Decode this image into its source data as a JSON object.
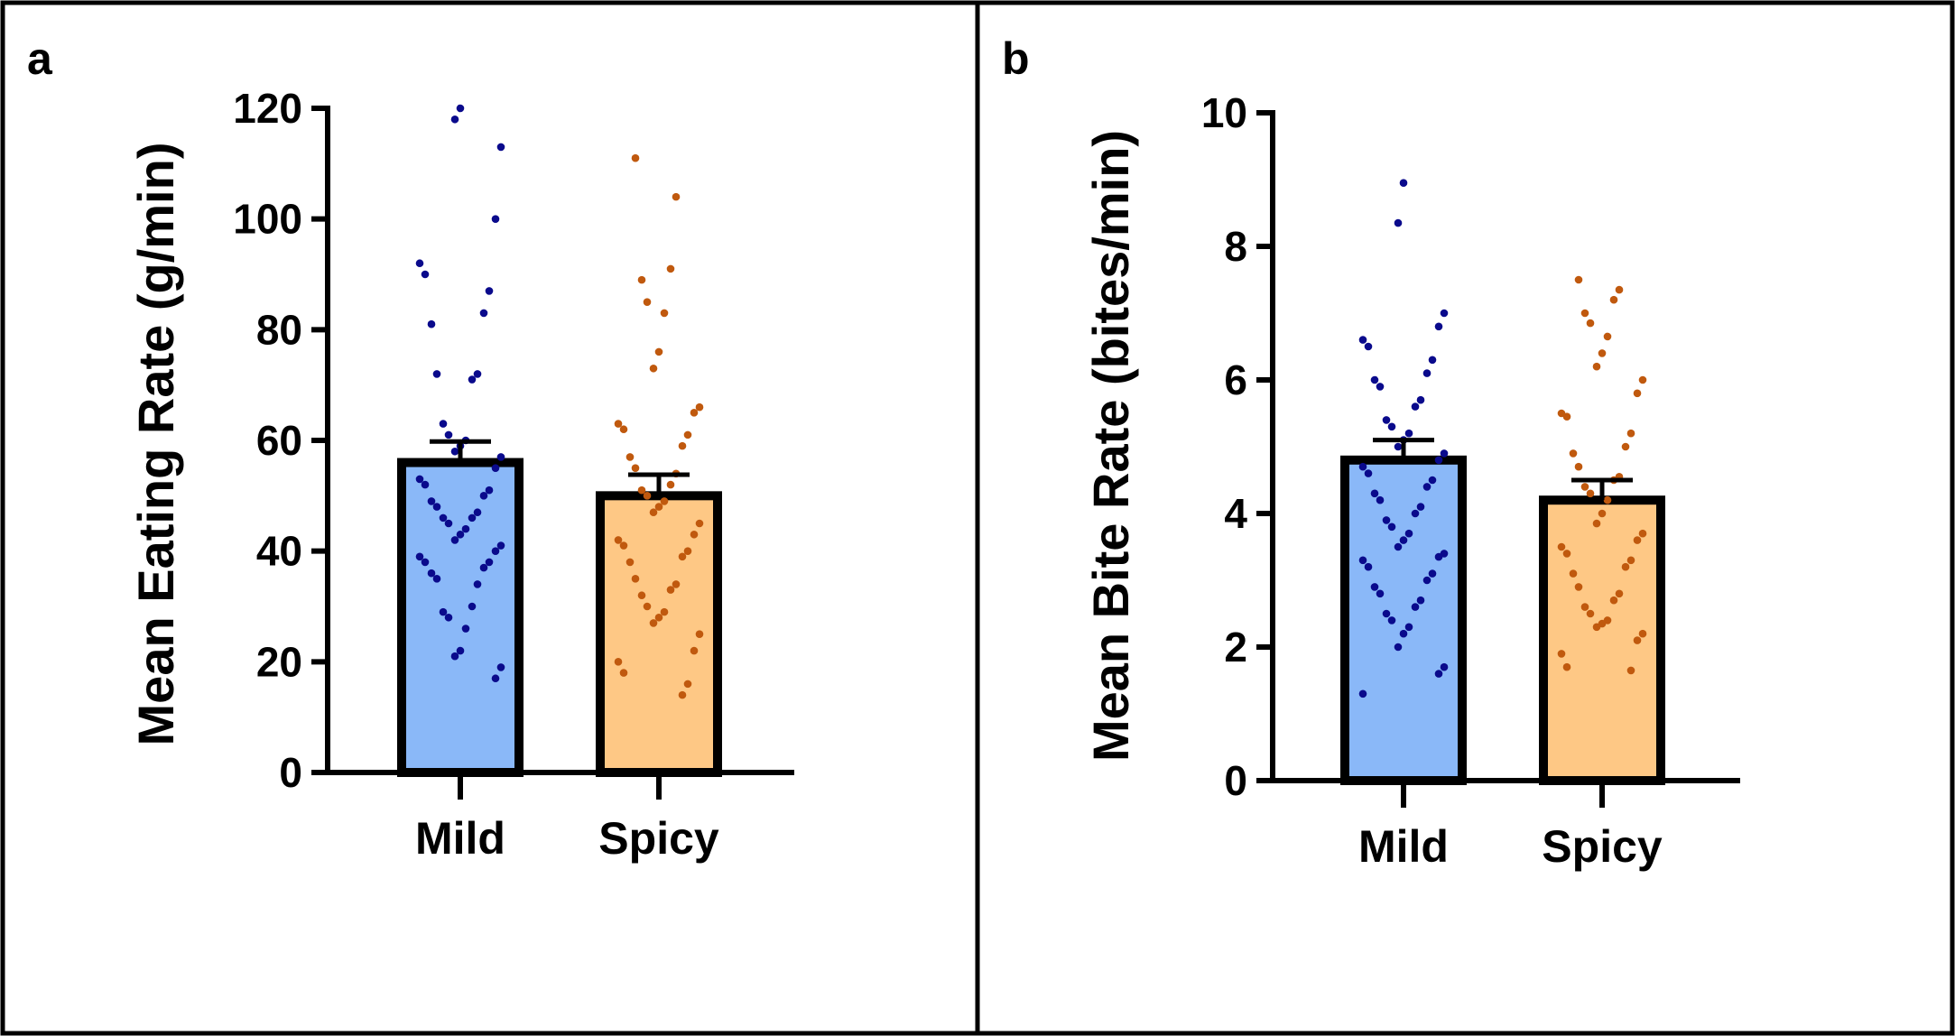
{
  "chart_data": [
    {
      "panel_label": "a",
      "type": "bar",
      "ylabel": "Mean Eating Rate (g/min)",
      "xlabel": "",
      "ylim": [
        0,
        120
      ],
      "yticks": [
        "0",
        "20",
        "40",
        "60",
        "80",
        "100",
        "120"
      ],
      "categories": [
        "Mild",
        "Spicy"
      ],
      "values": [
        56,
        50
      ],
      "error": [
        3.8,
        3.8
      ],
      "fill_colors": [
        "#8AB8F8",
        "#FEC885"
      ],
      "point_colors": [
        "#0A0A8C",
        "#C0590E"
      ],
      "points": [
        [
          120,
          118,
          113,
          100,
          92,
          90,
          87,
          83,
          81,
          72,
          72,
          71,
          63,
          61,
          60,
          59,
          58,
          57,
          55,
          53,
          52,
          51,
          50,
          49,
          48,
          47,
          46,
          46,
          45,
          44,
          43,
          42,
          41,
          40,
          39,
          38,
          38,
          37,
          36,
          35,
          34,
          30,
          29,
          28,
          26,
          22,
          21,
          19,
          17
        ],
        [
          111,
          104,
          91,
          89,
          85,
          83,
          76,
          73,
          66,
          65,
          63,
          62,
          61,
          59,
          57,
          55,
          54,
          52,
          51,
          50,
          49,
          48,
          47,
          45,
          43,
          42,
          41,
          40,
          39,
          38,
          35,
          34,
          33,
          32,
          30,
          29,
          28,
          27,
          25,
          22,
          20,
          18,
          16,
          14
        ]
      ]
    },
    {
      "panel_label": "b",
      "type": "bar",
      "ylabel": "Mean Bite Rate (bites/min)",
      "xlabel": "",
      "ylim": [
        0,
        10
      ],
      "yticks": [
        "0",
        "2",
        "4",
        "6",
        "8",
        "10"
      ],
      "categories": [
        "Mild",
        "Spicy"
      ],
      "values": [
        4.8,
        4.2
      ],
      "error": [
        0.3,
        0.3
      ],
      "fill_colors": [
        "#8AB8F8",
        "#FEC885"
      ],
      "point_colors": [
        "#0A0A8C",
        "#C0590E"
      ],
      "points": [
        [
          8.95,
          8.35,
          7.0,
          6.8,
          6.6,
          6.5,
          6.3,
          6.1,
          6.0,
          5.9,
          5.7,
          5.6,
          5.4,
          5.3,
          5.2,
          5.1,
          5.0,
          4.9,
          4.8,
          4.7,
          4.6,
          4.5,
          4.4,
          4.3,
          4.2,
          4.1,
          4.0,
          3.9,
          3.8,
          3.7,
          3.6,
          3.5,
          3.4,
          3.35,
          3.3,
          3.2,
          3.1,
          3.0,
          2.9,
          2.8,
          2.7,
          2.6,
          2.5,
          2.4,
          2.3,
          2.2,
          2.0,
          1.7,
          1.6,
          1.3
        ],
        [
          7.5,
          7.35,
          7.2,
          7.0,
          6.85,
          6.65,
          6.4,
          6.2,
          6.0,
          5.8,
          5.5,
          5.45,
          5.2,
          5.0,
          4.9,
          4.7,
          4.55,
          4.5,
          4.4,
          4.3,
          4.2,
          4.0,
          3.85,
          3.7,
          3.6,
          3.5,
          3.4,
          3.3,
          3.2,
          3.1,
          2.9,
          2.8,
          2.7,
          2.6,
          2.5,
          2.4,
          2.35,
          2.3,
          2.2,
          2.1,
          1.9,
          1.7,
          1.65
        ]
      ]
    }
  ]
}
